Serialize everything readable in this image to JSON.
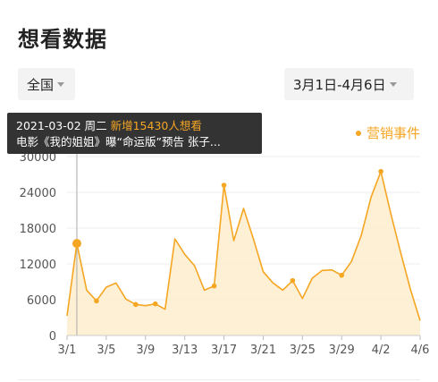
{
  "page_title": "想看数据",
  "filters": {
    "region": "全国",
    "date_range": "3月1日-4月6日"
  },
  "legend": {
    "marketing_label": "营销事件"
  },
  "tooltip": {
    "date": "2021-03-02 周二",
    "highlight": "新增15430人想看",
    "event": "电影《我的姐姐》曝“命运版”预告 张子..."
  },
  "colors": {
    "accent": "#f5a623",
    "area_fill": "#fdeecf",
    "tooltip_bg": "#282828"
  },
  "chart_data": {
    "type": "area",
    "title": "",
    "ylim": [
      0,
      30000
    ],
    "y_ticks": [
      0,
      6000,
      12000,
      18000,
      24000,
      30000
    ],
    "x_tick_labels": [
      "3/1",
      "3/5",
      "3/9",
      "3/13",
      "3/17",
      "3/21",
      "3/25",
      "3/29",
      "4/2",
      "4/6"
    ],
    "x": [
      "3/1",
      "3/2",
      "3/3",
      "3/4",
      "3/5",
      "3/6",
      "3/7",
      "3/8",
      "3/9",
      "3/10",
      "3/11",
      "3/12",
      "3/13",
      "3/14",
      "3/15",
      "3/16",
      "3/17",
      "3/18",
      "3/19",
      "3/20",
      "3/21",
      "3/22",
      "3/23",
      "3/24",
      "3/25",
      "3/26",
      "3/27",
      "3/28",
      "3/29",
      "3/30",
      "3/31",
      "4/1",
      "4/2",
      "4/3",
      "4/4",
      "4/5",
      "4/6"
    ],
    "values": [
      3300,
      15430,
      7600,
      5800,
      8100,
      8800,
      6100,
      5200,
      5000,
      5300,
      4400,
      16200,
      13600,
      11700,
      7600,
      8300,
      25200,
      15900,
      21300,
      16200,
      10700,
      8800,
      7600,
      9200,
      6200,
      9600,
      10900,
      11000,
      10100,
      12400,
      16800,
      23200,
      27500,
      20500,
      14000,
      7800,
      2500
    ],
    "marketing_events": [
      "3/2",
      "3/4",
      "3/8",
      "3/10",
      "3/16",
      "3/17",
      "3/24",
      "3/29",
      "4/2"
    ],
    "selected": "3/2"
  }
}
